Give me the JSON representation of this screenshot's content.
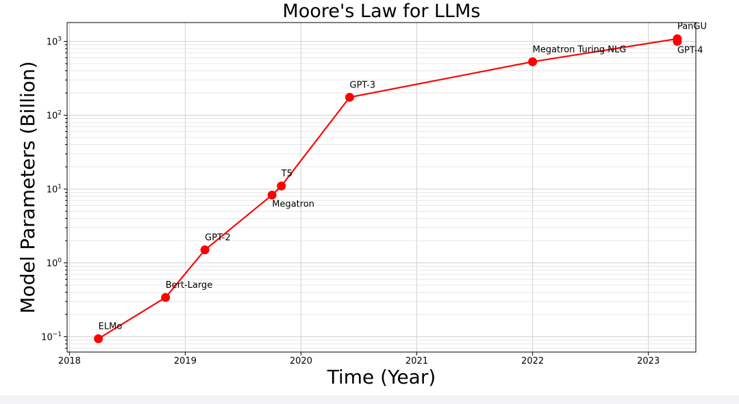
{
  "chart_data": {
    "type": "line",
    "title": "Moore's Law for LLMs",
    "xlabel": "Time (Year)",
    "ylabel": "Model Parameters (Billion)",
    "yscale": "log",
    "xlim": [
      2017.98,
      2023.41
    ],
    "ylim": [
      0.062,
      1800
    ],
    "grid": true,
    "x_ticks": [
      2018,
      2019,
      2020,
      2021,
      2022,
      2023
    ],
    "y_ticks": [
      {
        "value": 0.1,
        "base": "10",
        "exp": "−1"
      },
      {
        "value": 1,
        "base": "10",
        "exp": "0"
      },
      {
        "value": 10,
        "base": "10",
        "exp": "1"
      },
      {
        "value": 100,
        "base": "10",
        "exp": "2"
      },
      {
        "value": 1000,
        "base": "10",
        "exp": "3"
      }
    ],
    "series": [
      {
        "color": "#ff0000",
        "points": [
          {
            "label": "ELMo",
            "x": 2018.25,
            "y": 0.094,
            "label_pos": "above"
          },
          {
            "label": "Bert-Large",
            "x": 2018.83,
            "y": 0.34,
            "label_pos": "above"
          },
          {
            "label": "GPT-2",
            "x": 2019.17,
            "y": 1.5,
            "label_pos": "above"
          },
          {
            "label": "Megatron",
            "x": 2019.75,
            "y": 8.3,
            "label_pos": "below"
          },
          {
            "label": "T5",
            "x": 2019.83,
            "y": 11,
            "label_pos": "above"
          },
          {
            "label": "GPT-3",
            "x": 2020.42,
            "y": 175,
            "label_pos": "above"
          },
          {
            "label": "Megatron Turing NLG",
            "x": 2022.0,
            "y": 530,
            "label_pos": "above"
          },
          {
            "label": "PanGU",
            "x": 2023.25,
            "y": 1085,
            "label_pos": "above"
          },
          {
            "label": "GPT-4",
            "x": 2023.25,
            "y": 1000,
            "label_pos": "below"
          }
        ]
      }
    ]
  }
}
